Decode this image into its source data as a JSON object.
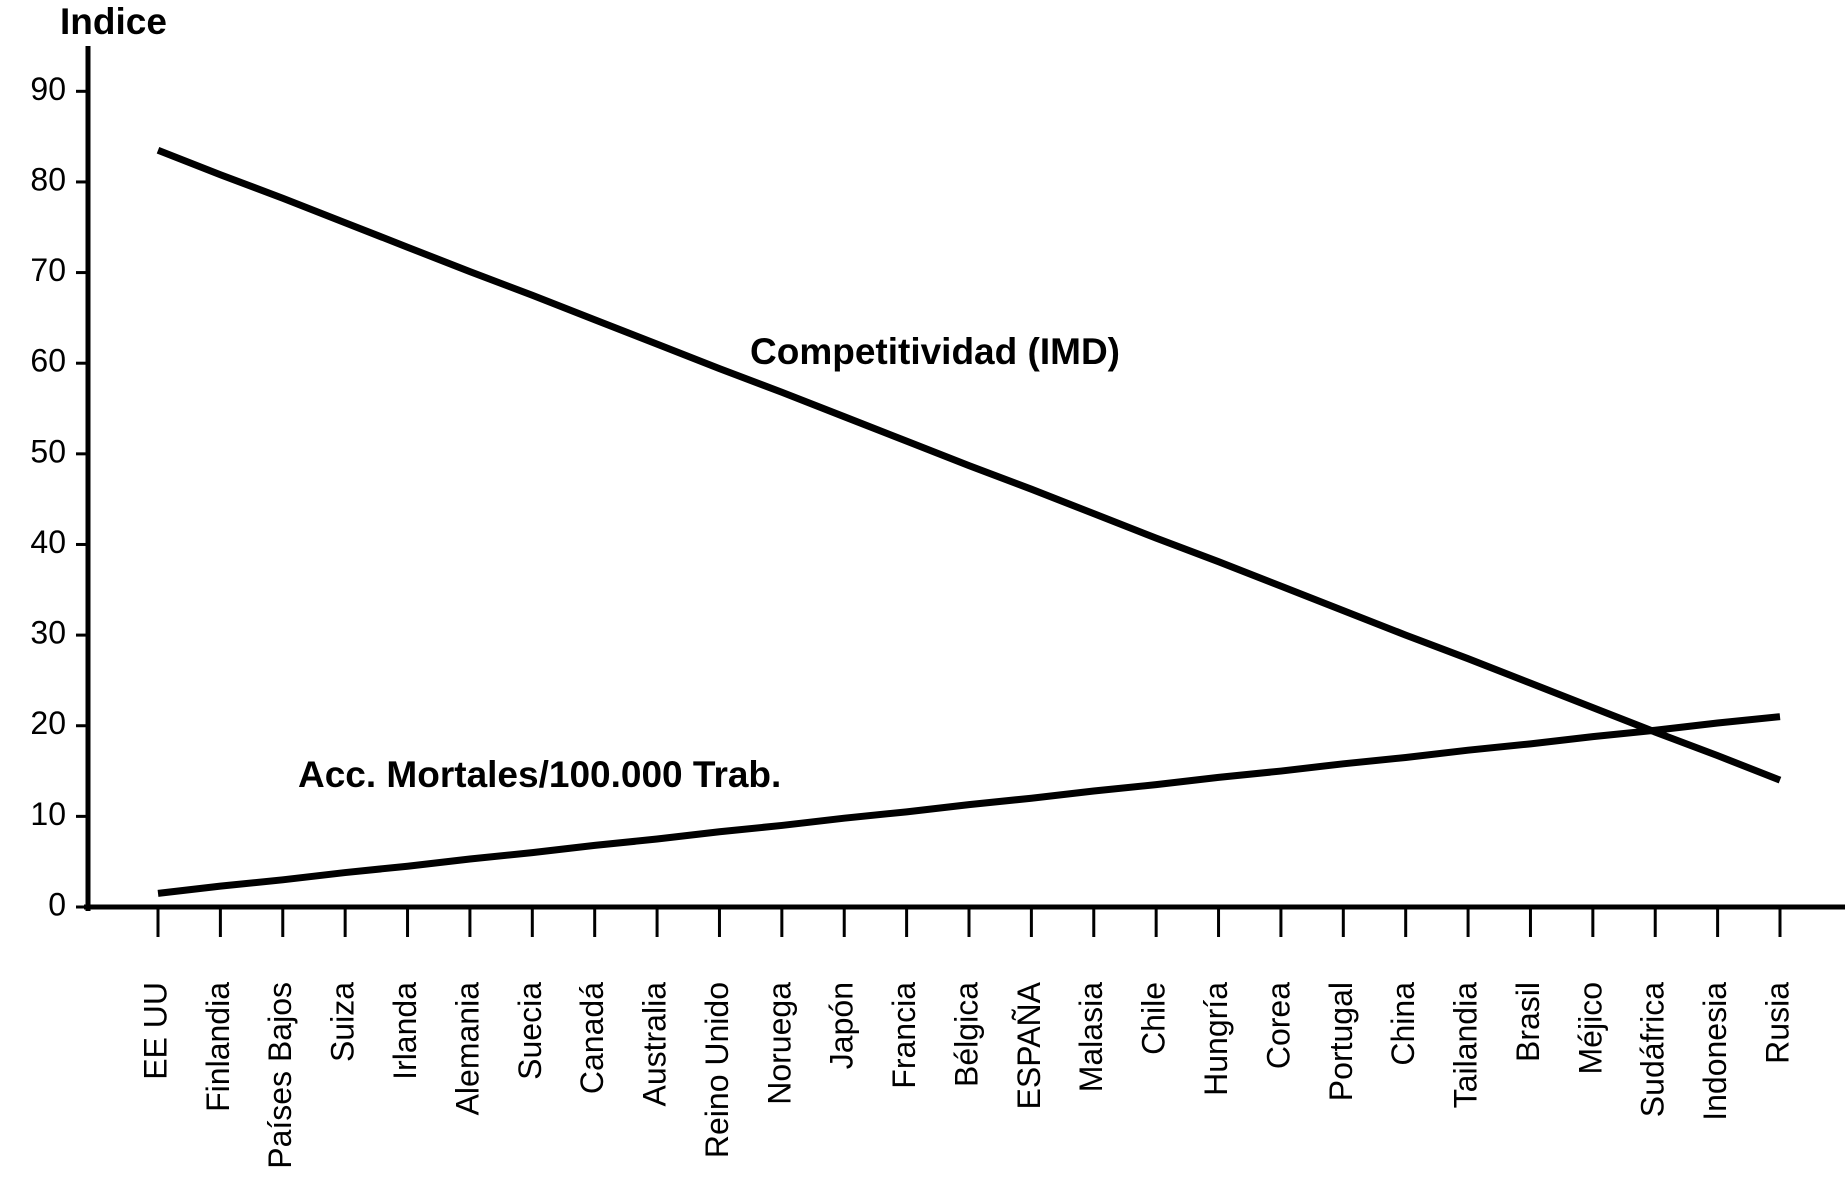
{
  "chart_data": {
    "type": "line",
    "y_label": "Indice",
    "categories": [
      "EE UU",
      "Finlandia",
      "Países Bajos",
      "Suiza",
      "Irlanda",
      "Alemania",
      "Suecia",
      "Canadá",
      "Australia",
      "Reino Unido",
      "Noruega",
      "Japón",
      "Francia",
      "Bélgica",
      "ESPAÑA",
      "Malasia",
      "Chile",
      "Hungría",
      "Corea",
      "Portugal",
      "China",
      "Tailandia",
      "Brasil",
      "Méjico",
      "Sudáfrica",
      "Indonesia",
      "Rusia"
    ],
    "series": [
      {
        "name": "Competitividad (IMD)",
        "color": "#000000",
        "values": [
          83.5,
          80.8,
          78.2,
          75.5,
          72.8,
          70.1,
          67.5,
          64.8,
          62.1,
          59.4,
          56.8,
          54.1,
          51.4,
          48.7,
          46.1,
          43.4,
          40.7,
          38.1,
          35.4,
          32.7,
          30.0,
          27.4,
          24.7,
          22.0,
          19.3,
          16.7,
          14.0
        ]
      },
      {
        "name": "Acc. Mortales/100.000 Trab.",
        "color": "#000000",
        "values": [
          1.5,
          2.3,
          3.0,
          3.8,
          4.5,
          5.3,
          6.0,
          6.8,
          7.5,
          8.3,
          9.0,
          9.8,
          10.5,
          11.3,
          12.0,
          12.8,
          13.5,
          14.3,
          15.0,
          15.8,
          16.5,
          17.3,
          18.0,
          18.8,
          19.5,
          20.3,
          21.0
        ]
      }
    ],
    "ylim": [
      0,
      95
    ],
    "yticks": [
      0,
      10,
      20,
      30,
      40,
      50,
      60,
      70,
      80,
      90
    ],
    "grid": false
  }
}
